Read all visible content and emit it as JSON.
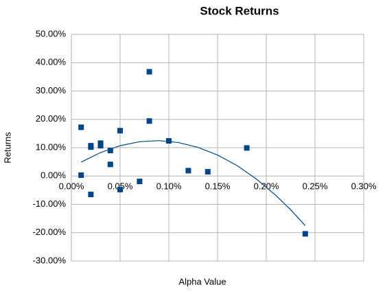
{
  "chart_data": {
    "type": "scatter",
    "title": "Stock Returns",
    "x_label": "Alpha Value",
    "y_label": "Returns",
    "series": [
      {
        "color": "#004586",
        "x": [
          0.01,
          0.01,
          0.02,
          0.02,
          0.02,
          0.03,
          0.03,
          0.04,
          0.04,
          0.05,
          0.05,
          0.07,
          0.08,
          0.08,
          0.1,
          0.12,
          0.14,
          0.18,
          0.24
        ],
        "values": [
          17.2,
          0.3,
          10.7,
          10.2,
          -6.5,
          11.6,
          10.7,
          9.0,
          4.1,
          16.0,
          -4.8,
          -1.9,
          36.8,
          19.4,
          12.4,
          1.9,
          1.5,
          9.9,
          -20.4
        ]
      }
    ],
    "trendline": {
      "color": "#004586",
      "x": [
        0.01,
        0.03,
        0.05,
        0.07,
        0.09,
        0.11,
        0.13,
        0.15,
        0.17,
        0.19,
        0.21,
        0.225,
        0.24
      ],
      "values": [
        4.9,
        8.3,
        10.7,
        12.1,
        12.5,
        11.8,
        10.1,
        7.4,
        3.7,
        -1.1,
        -6.9,
        -11.9,
        -17.5
      ]
    },
    "xlim": [
      0,
      0.3
    ],
    "xticks": [
      {
        "value": 0,
        "label": "0.00%"
      },
      {
        "value": 0.05,
        "label": "0.05%"
      },
      {
        "value": 0.1,
        "label": "0.10%"
      },
      {
        "value": 0.15,
        "label": "0.15%"
      },
      {
        "value": 0.2,
        "label": "0.20%"
      },
      {
        "value": 0.25,
        "label": "0.25%"
      },
      {
        "value": 0.3,
        "label": "0.30%"
      }
    ],
    "ylim": [
      -30,
      50
    ],
    "yticks": [
      {
        "value": -30,
        "label": "-30.00%"
      },
      {
        "value": -20,
        "label": "-20.00%"
      },
      {
        "value": -10,
        "label": "-10.00%"
      },
      {
        "value": 0,
        "label": "0.00%"
      },
      {
        "value": 10,
        "label": "10.00%"
      },
      {
        "value": 20,
        "label": "20.00%"
      },
      {
        "value": 30,
        "label": "30.00%"
      },
      {
        "value": 40,
        "label": "40.00%"
      },
      {
        "value": 50,
        "label": "50.00%"
      }
    ],
    "grid": true
  }
}
